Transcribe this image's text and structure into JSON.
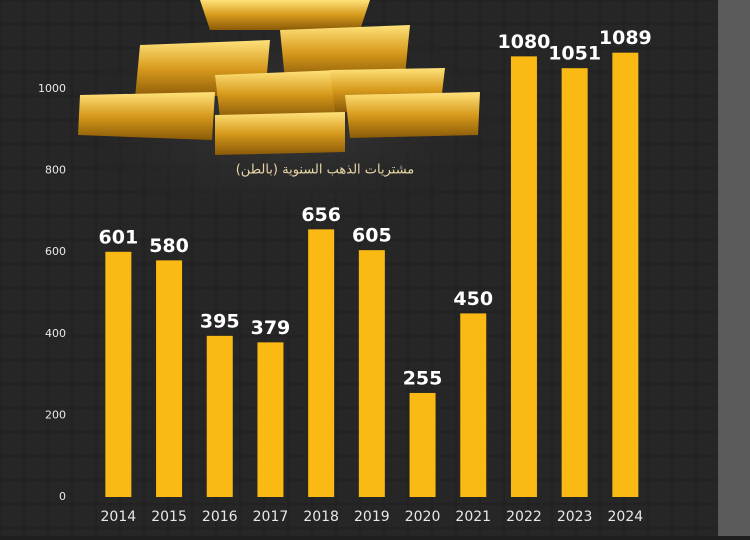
{
  "chart_data": {
    "type": "bar",
    "title": "مشتريات الذهب السنوية (بالطن)",
    "categories": [
      "2014",
      "2015",
      "2016",
      "2017",
      "2018",
      "2019",
      "2020",
      "2021",
      "2022",
      "2023",
      "2024"
    ],
    "values": [
      601,
      580,
      395,
      379,
      656,
      605,
      255,
      450,
      1080,
      1051,
      1089
    ],
    "color": "#fbb914",
    "ylim": [
      0,
      1200
    ],
    "yticks": [
      0,
      200,
      400,
      600,
      800,
      1000
    ],
    "grid": false
  }
}
